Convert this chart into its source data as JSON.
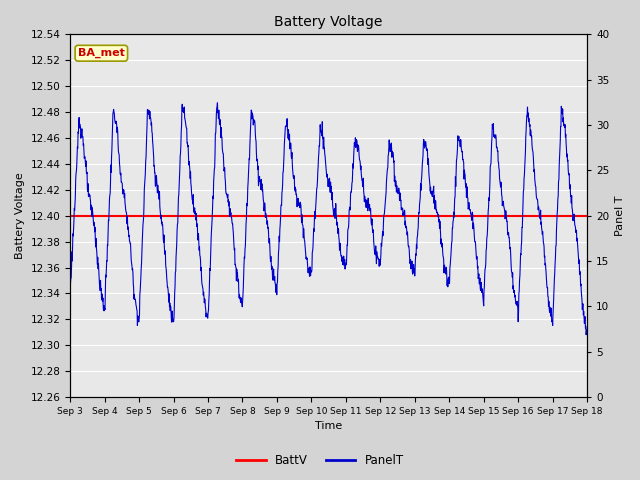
{
  "title": "Battery Voltage",
  "xlabel": "Time",
  "ylabel_left": "Battery Voltage",
  "ylabel_right": "Panel T",
  "annotation_text": "BA_met",
  "annotation_bg": "#ffffcc",
  "annotation_border": "#999900",
  "annotation_text_color": "#cc0000",
  "ylim_left": [
    12.26,
    12.54
  ],
  "ylim_right": [
    0,
    40
  ],
  "yticks_left": [
    12.26,
    12.28,
    12.3,
    12.32,
    12.34,
    12.36,
    12.38,
    12.4,
    12.42,
    12.44,
    12.46,
    12.48,
    12.5,
    12.52,
    12.54
  ],
  "yticks_right": [
    0,
    5,
    10,
    15,
    20,
    25,
    30,
    35,
    40
  ],
  "xtick_labels": [
    "Sep 3",
    "Sep 4",
    "Sep 5",
    "Sep 6",
    "Sep 7",
    "Sep 8",
    "Sep 9",
    "Sep 10",
    "Sep 11",
    "Sep 12",
    "Sep 13",
    "Sep 14",
    "Sep 15",
    "Sep 16",
    "Sep 17",
    "Sep 18"
  ],
  "battv_value": 12.4,
  "battv_color": "#ff0000",
  "panelt_color": "#0000cc",
  "legend_battv": "BattV",
  "legend_panelt": "PanelT",
  "plot_bg_color": "#e8e8e8",
  "fig_bg_color": "#d4d4d4",
  "grid_color": "#ffffff",
  "n_days": 15,
  "n_points": 1500
}
